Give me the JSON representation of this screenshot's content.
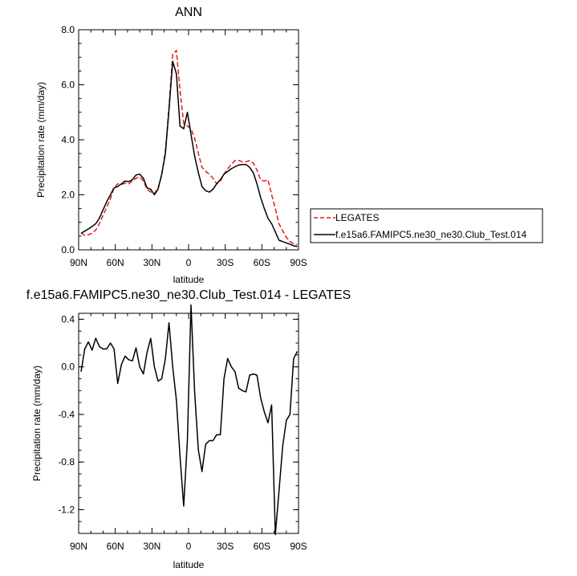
{
  "chart_data": [
    {
      "type": "line",
      "title": "ANN",
      "xlabel": "latitude",
      "ylabel": "Precipitation rate (mm/day)",
      "xlim": [
        90,
        -90
      ],
      "ylim": [
        0,
        8
      ],
      "x_ticks": [
        90,
        60,
        30,
        0,
        -30,
        -60,
        -90
      ],
      "x_tick_labels": [
        "90N",
        "60N",
        "30N",
        "0",
        "30S",
        "60S",
        "90S"
      ],
      "y_ticks": [
        0,
        2,
        4,
        6,
        8
      ],
      "y_tick_labels": [
        "0.0",
        "2.0",
        "4.0",
        "6.0",
        "8.0"
      ],
      "legend_position": "right",
      "series": [
        {
          "name": "LEGATES",
          "color": "#e41a1c",
          "dash": "dashed",
          "x": [
            88,
            85,
            82,
            79,
            76,
            73,
            70,
            67,
            64,
            61,
            58,
            55,
            52,
            49,
            46,
            43,
            40,
            37,
            34,
            31,
            28,
            25,
            22,
            19,
            16,
            13,
            10,
            7,
            4,
            1,
            -2,
            -5,
            -8,
            -11,
            -14,
            -17,
            -20,
            -23,
            -26,
            -29,
            -32,
            -35,
            -38,
            -41,
            -44,
            -47,
            -50,
            -53,
            -56,
            -59,
            -62,
            -65,
            -68,
            -71,
            -74,
            -77,
            -80,
            -83,
            -86,
            -89
          ],
          "y": [
            0.62,
            0.52,
            0.55,
            0.6,
            0.72,
            0.95,
            1.25,
            1.55,
            1.85,
            2.25,
            2.4,
            2.38,
            2.42,
            2.4,
            2.5,
            2.6,
            2.65,
            2.5,
            2.2,
            2.1,
            2.05,
            2.25,
            2.7,
            3.6,
            5.2,
            7.1,
            7.25,
            5.8,
            4.6,
            4.5,
            4.4,
            4.05,
            3.5,
            3.0,
            2.85,
            2.75,
            2.6,
            2.4,
            2.5,
            2.75,
            2.95,
            3.1,
            3.25,
            3.25,
            3.2,
            3.2,
            3.25,
            3.15,
            2.9,
            2.55,
            2.5,
            2.55,
            2.0,
            1.5,
            0.95,
            0.7,
            0.45,
            0.3,
            0.22,
            0.18
          ]
        },
        {
          "name": "f.e15a6.FAMIPC5.ne30_ne30.Club_Test.014",
          "color": "#000000",
          "dash": "solid",
          "x": [
            88,
            85,
            82,
            79,
            76,
            73,
            70,
            67,
            64,
            61,
            58,
            55,
            52,
            49,
            46,
            43,
            40,
            37,
            34,
            31,
            28,
            25,
            22,
            19,
            16,
            13,
            10,
            7,
            4,
            1,
            -2,
            -5,
            -8,
            -11,
            -14,
            -17,
            -20,
            -23,
            -26,
            -29,
            -32,
            -35,
            -38,
            -41,
            -44,
            -47,
            -50,
            -53,
            -56,
            -59,
            -62,
            -65,
            -68,
            -71,
            -74,
            -77,
            -80,
            -83,
            -86,
            -89
          ],
          "y": [
            0.6,
            0.68,
            0.76,
            0.85,
            0.95,
            1.15,
            1.45,
            1.75,
            2.0,
            2.25,
            2.3,
            2.4,
            2.5,
            2.48,
            2.55,
            2.72,
            2.75,
            2.6,
            2.25,
            2.2,
            2.0,
            2.2,
            2.75,
            3.5,
            5.1,
            6.85,
            6.4,
            4.5,
            4.4,
            5.0,
            4.2,
            3.4,
            2.8,
            2.3,
            2.15,
            2.1,
            2.2,
            2.4,
            2.55,
            2.75,
            2.85,
            2.95,
            3.02,
            3.08,
            3.1,
            3.1,
            3.0,
            2.8,
            2.4,
            1.9,
            1.5,
            1.15,
            0.95,
            0.65,
            0.35,
            0.3,
            0.25,
            0.2,
            0.15,
            0.12
          ]
        }
      ]
    },
    {
      "type": "line",
      "title": "f.e15a6.FAMIPC5.ne30_ne30.Club_Test.014 - LEGATES",
      "xlabel": "latitude",
      "ylabel": "Precipitation rate (mm/day)",
      "xlim": [
        90,
        -90
      ],
      "ylim": [
        -1.4,
        0.45
      ],
      "x_ticks": [
        90,
        60,
        30,
        0,
        -30,
        -60,
        -90
      ],
      "x_tick_labels": [
        "90N",
        "60N",
        "30N",
        "0",
        "30S",
        "60S",
        "90S"
      ],
      "y_ticks": [
        -1.2,
        -0.8,
        -0.4,
        0.0,
        0.4
      ],
      "y_tick_labels": [
        "-1.2",
        "-0.8",
        "-0.4",
        "0.0",
        "0.4"
      ],
      "series": [
        {
          "name": "",
          "color": "#000000",
          "dash": "solid",
          "x": [
            88,
            85,
            82,
            79,
            76,
            73,
            70,
            67,
            64,
            61,
            58,
            55,
            52,
            49,
            46,
            43,
            40,
            37,
            34,
            31,
            28,
            25,
            22,
            19,
            16,
            13,
            10,
            7,
            4,
            1,
            -2,
            -5,
            -8,
            -11,
            -14,
            -17,
            -20,
            -23,
            -26,
            -29,
            -32,
            -35,
            -38,
            -41,
            -44,
            -47,
            -50,
            -53,
            -56,
            -59,
            -62,
            -65,
            -68,
            -71,
            -74,
            -77,
            -80,
            -83,
            -86,
            -89
          ],
          "y": [
            -0.04,
            0.15,
            0.21,
            0.14,
            0.24,
            0.17,
            0.15,
            0.15,
            0.2,
            0.15,
            -0.14,
            0.02,
            0.09,
            0.06,
            0.05,
            0.16,
            0.0,
            -0.06,
            0.12,
            0.24,
            0.0,
            -0.12,
            -0.1,
            0.07,
            0.37,
            0.0,
            -0.28,
            -0.75,
            -1.17,
            -0.62,
            0.52,
            -0.22,
            -0.7,
            -0.88,
            -0.65,
            -0.62,
            -0.62,
            -0.57,
            -0.57,
            -0.1,
            0.07,
            0.0,
            -0.04,
            -0.18,
            -0.2,
            -0.21,
            -0.07,
            -0.06,
            -0.07,
            -0.26,
            -0.38,
            -0.47,
            -0.32,
            -1.41,
            -1.05,
            -0.67,
            -0.45,
            -0.4,
            0.07,
            0.13
          ]
        }
      ]
    }
  ]
}
